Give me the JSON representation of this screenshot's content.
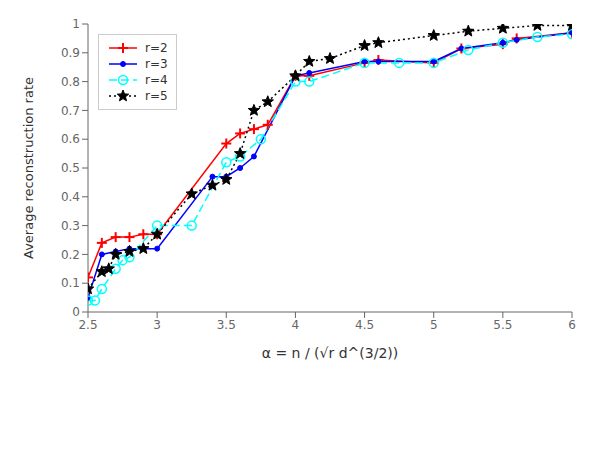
{
  "chart_data": {
    "type": "line",
    "x_label": "α = n / (√r d^(3/2))",
    "y_label": "Average reconstruction rate",
    "xlim": [
      2.5,
      6.0
    ],
    "ylim": [
      0.0,
      1.0
    ],
    "xticks": [
      2.5,
      3,
      3.5,
      4,
      4.5,
      5,
      5.5,
      6
    ],
    "yticks": [
      0,
      0.1,
      0.2,
      0.3,
      0.4,
      0.5,
      0.6,
      0.7,
      0.8,
      0.9,
      1
    ],
    "grid": false,
    "legend": "upper left",
    "series": [
      {
        "name": "r=2",
        "color": "#FF0000",
        "line_style": "solid",
        "marker": "plus",
        "x": [
          2.5,
          2.6,
          2.7,
          2.8,
          2.9,
          3.0,
          3.5,
          3.6,
          3.7,
          3.8,
          4.0,
          4.1,
          4.5,
          4.6,
          5.0,
          5.2,
          5.5,
          5.6,
          6.0
        ],
        "values": [
          0.12,
          0.24,
          0.26,
          0.26,
          0.27,
          0.27,
          0.585,
          0.62,
          0.635,
          0.65,
          0.82,
          0.82,
          0.865,
          0.875,
          0.865,
          0.915,
          0.93,
          0.95,
          0.97
        ]
      },
      {
        "name": "r=3",
        "color": "#0000FF",
        "line_style": "solid",
        "marker": "point",
        "x": [
          2.5,
          2.6,
          2.7,
          2.8,
          2.9,
          3.0,
          3.4,
          3.5,
          3.6,
          3.7,
          4.0,
          4.1,
          4.5,
          4.6,
          5.0,
          5.2,
          5.5,
          5.6,
          6.0
        ],
        "values": [
          0.05,
          0.2,
          0.21,
          0.22,
          0.22,
          0.22,
          0.47,
          0.47,
          0.5,
          0.54,
          0.82,
          0.83,
          0.87,
          0.87,
          0.87,
          0.915,
          0.935,
          0.945,
          0.97
        ]
      },
      {
        "name": "r=4",
        "color": "#00FFFF",
        "line_style": "dashed",
        "marker": "circle",
        "x": [
          2.5,
          2.55,
          2.6,
          2.7,
          2.75,
          2.8,
          3.0,
          3.25,
          3.5,
          3.6,
          3.75,
          4.0,
          4.1,
          4.5,
          4.75,
          5.0,
          5.25,
          5.5,
          5.75,
          6.0
        ],
        "values": [
          0.04,
          0.04,
          0.08,
          0.15,
          0.18,
          0.19,
          0.3,
          0.3,
          0.52,
          0.54,
          0.6,
          0.8,
          0.8,
          0.865,
          0.865,
          0.865,
          0.91,
          0.935,
          0.955,
          0.965
        ]
      },
      {
        "name": "r=5",
        "color": "#000000",
        "line_style": "dotted",
        "marker": "star",
        "x": [
          2.5,
          2.6,
          2.65,
          2.7,
          2.8,
          2.9,
          3.0,
          3.25,
          3.4,
          3.5,
          3.6,
          3.7,
          3.8,
          4.0,
          4.1,
          4.25,
          4.5,
          4.6,
          5.0,
          5.25,
          5.5,
          5.75,
          6.0
        ],
        "values": [
          0.08,
          0.14,
          0.15,
          0.2,
          0.21,
          0.22,
          0.27,
          0.41,
          0.44,
          0.46,
          0.55,
          0.7,
          0.73,
          0.82,
          0.87,
          0.88,
          0.925,
          0.935,
          0.96,
          0.975,
          0.985,
          0.995,
          0.995
        ]
      }
    ]
  }
}
